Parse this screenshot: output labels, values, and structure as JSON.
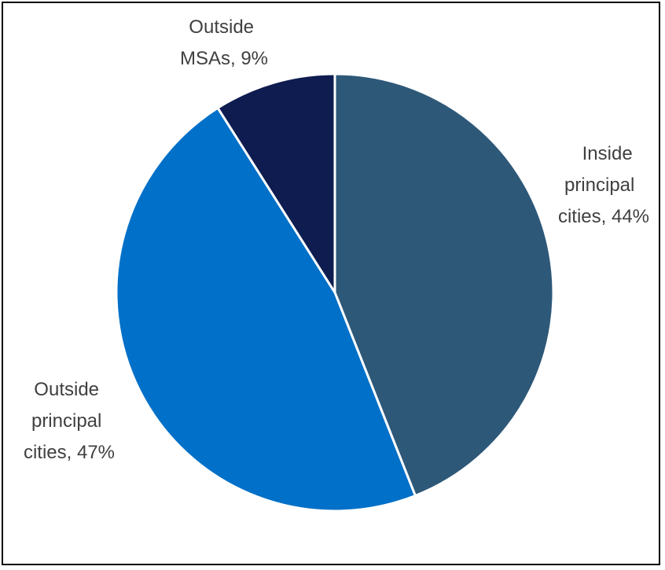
{
  "chart_data": {
    "type": "pie",
    "title": "",
    "legend": "none",
    "start_angle_deg": 0,
    "direction": "clockwise",
    "slices": [
      {
        "name": "Inside principal cities",
        "value": 44,
        "color": "#2E5878",
        "label_lines": [
          "Inside",
          "principal",
          "cities, 44%"
        ]
      },
      {
        "name": "Outside principal cities",
        "value": 47,
        "color": "#0070C8",
        "label_lines": [
          "Outside",
          "principal",
          "cities, 47%"
        ]
      },
      {
        "name": "Outside MSAs",
        "value": 9,
        "color": "#0E1C50",
        "label_lines": [
          "Outside",
          "MSAs, 9%"
        ]
      }
    ]
  }
}
